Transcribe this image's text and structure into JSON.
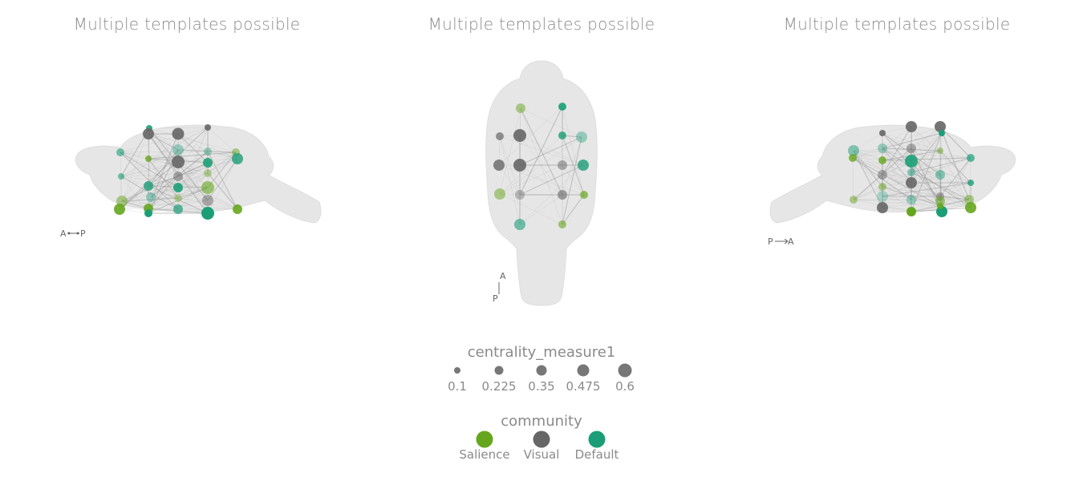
{
  "panels": [
    {
      "title": "Multiple templates possible",
      "view": "sagittal-left",
      "orientation": {
        "from": "A",
        "to": "P"
      }
    },
    {
      "title": "Multiple templates possible",
      "view": "axial",
      "orientation": {
        "from": "P",
        "to": "A"
      }
    },
    {
      "title": "Multiple templates possible",
      "view": "sagittal-right",
      "orientation": {
        "from": "P",
        "to": "A"
      }
    }
  ],
  "legend": {
    "size_title": "centrality_measure1",
    "size_values": [
      "0.1",
      "0.225",
      "0.35",
      "0.475",
      "0.6"
    ],
    "community_title": "community",
    "communities": [
      {
        "name": "Salience",
        "color": "#66a61e"
      },
      {
        "name": "Visual",
        "color": "#666666"
      },
      {
        "name": "Default",
        "color": "#1b9e77"
      }
    ]
  },
  "colors": {
    "brain": "#e6e6e6",
    "edge": "#9a9a9a"
  }
}
